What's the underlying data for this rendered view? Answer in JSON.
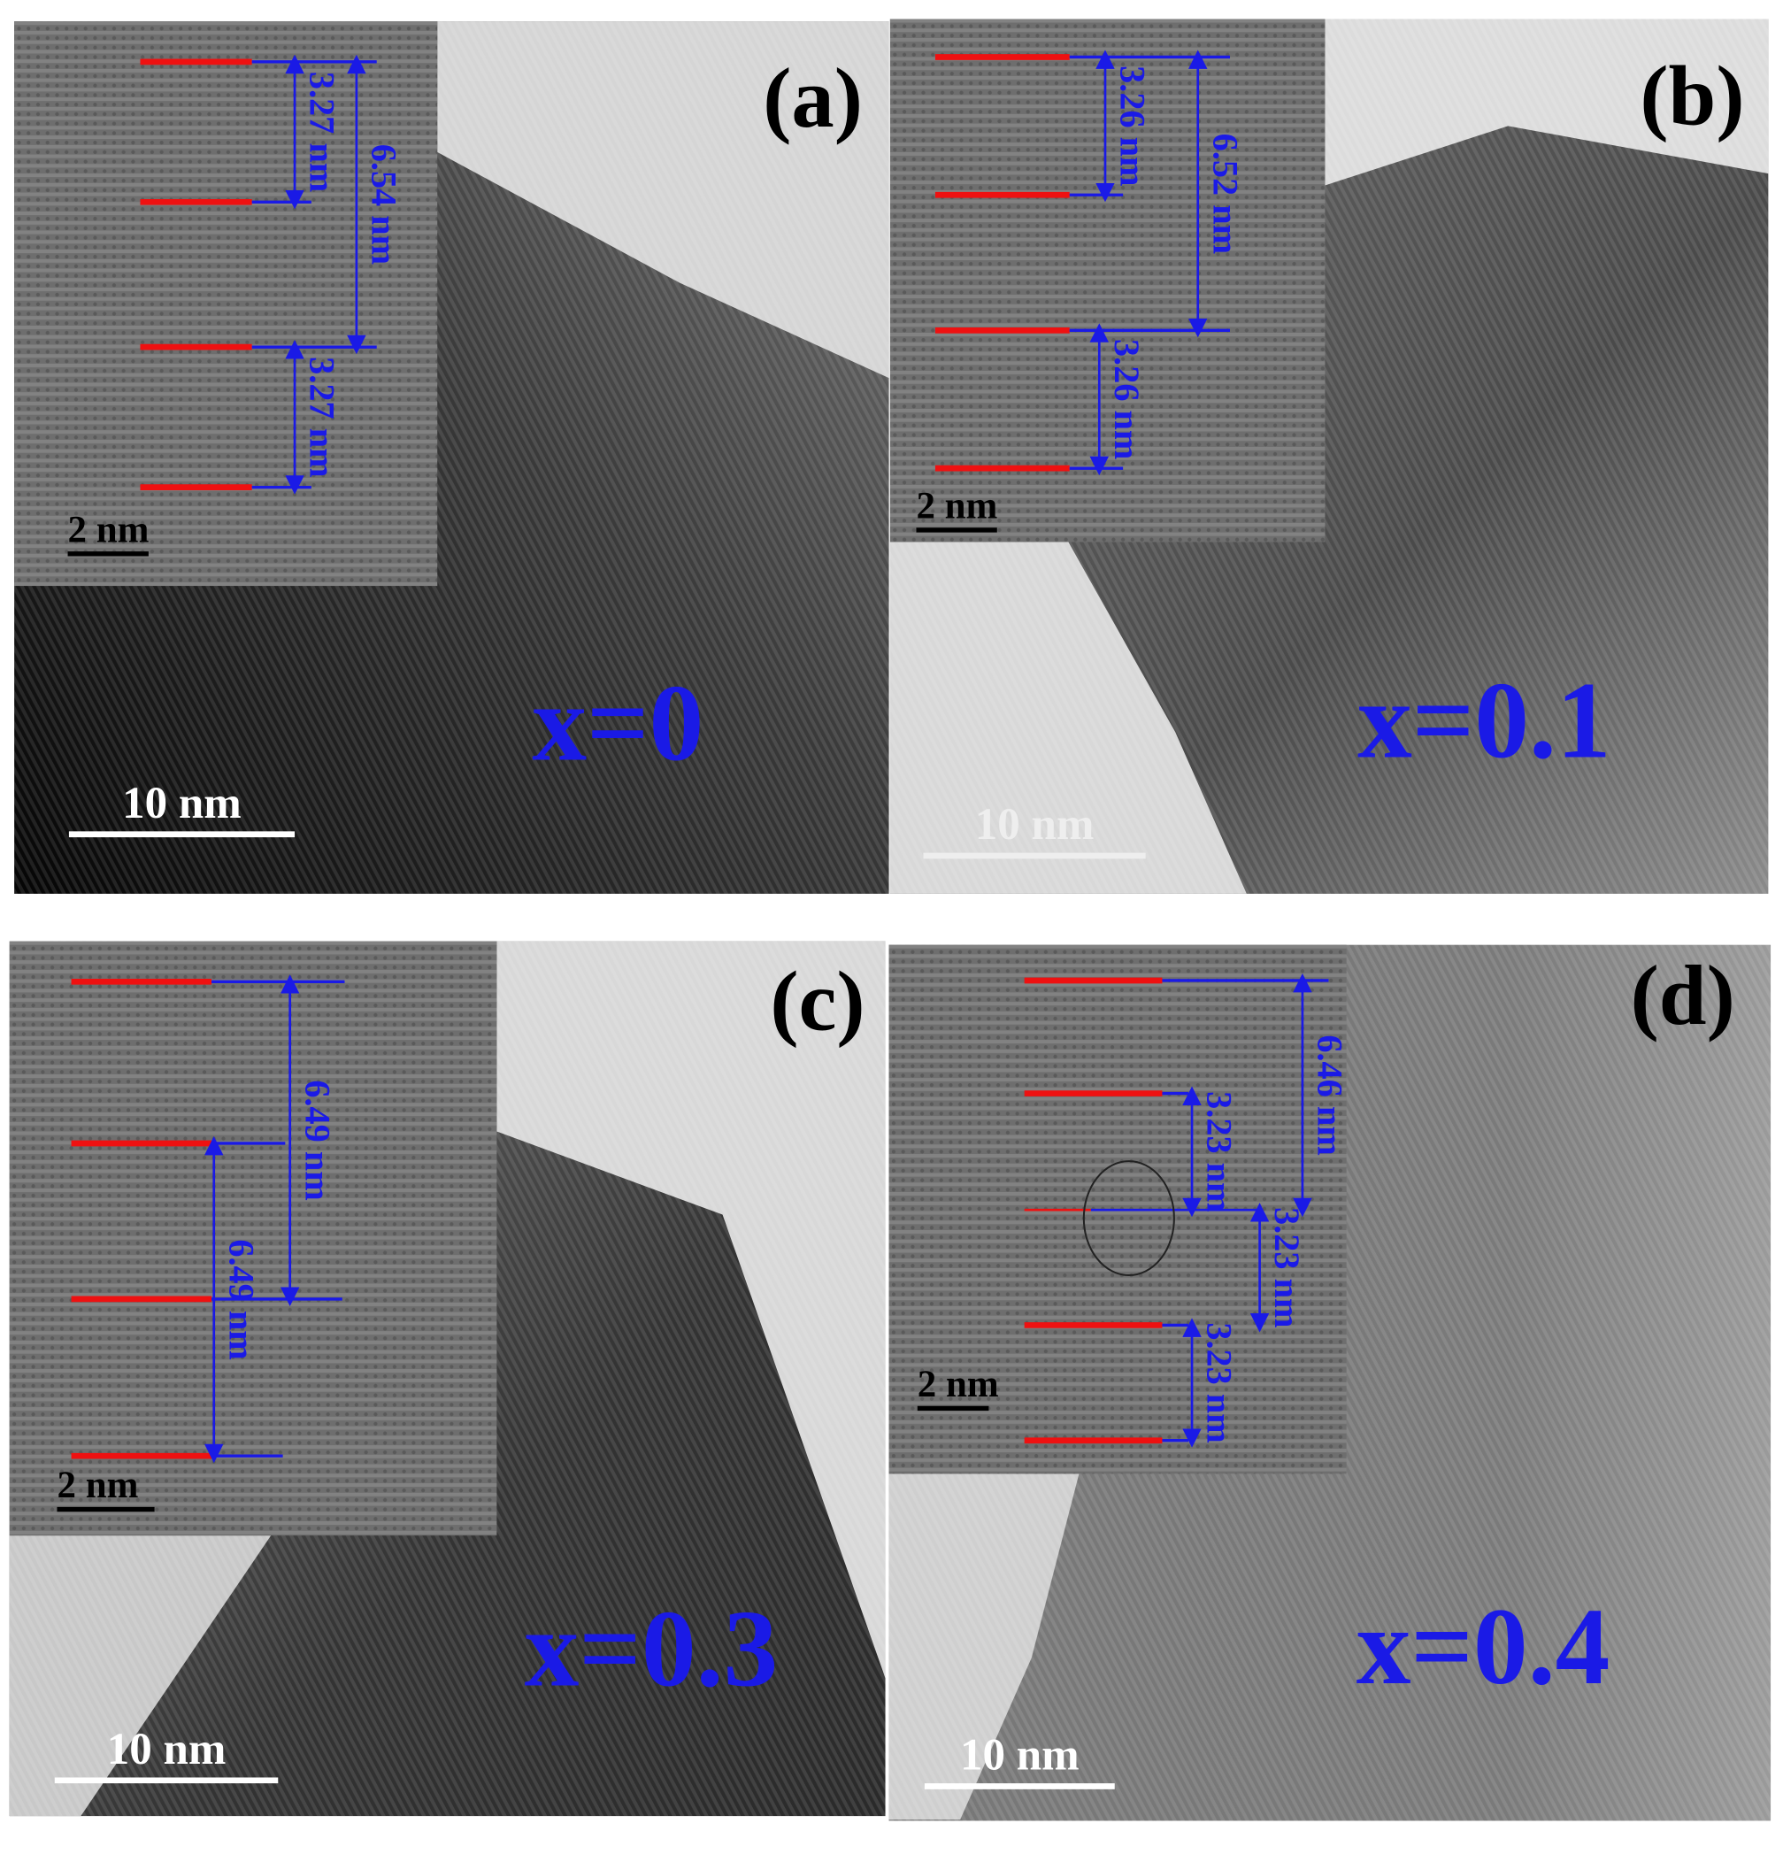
{
  "panels": [
    {
      "label": "(a)",
      "composition": "x=0",
      "scale_bar": "10 nm",
      "inset_scale_bar": "2 nm",
      "measurements": [
        "3.27 nm",
        "6.54 nm",
        "3.27 nm"
      ]
    },
    {
      "label": "(b)",
      "composition": "x=0.1",
      "scale_bar": "10 nm",
      "inset_scale_bar": "2 nm",
      "measurements": [
        "3.26 nm",
        "6.52 nm",
        "3.26 nm"
      ]
    },
    {
      "label": "(c)",
      "composition": "x=0.3",
      "scale_bar": "10 nm",
      "inset_scale_bar": "2 nm",
      "measurements": [
        "6.49 nm",
        "6.49 nm"
      ]
    },
    {
      "label": "(d)",
      "composition": "x=0.4",
      "scale_bar": "10 nm",
      "inset_scale_bar": "2 nm",
      "measurements": [
        "6.46 nm",
        "3.23 nm",
        "3.23 nm",
        "3.23 nm"
      ]
    }
  ]
}
